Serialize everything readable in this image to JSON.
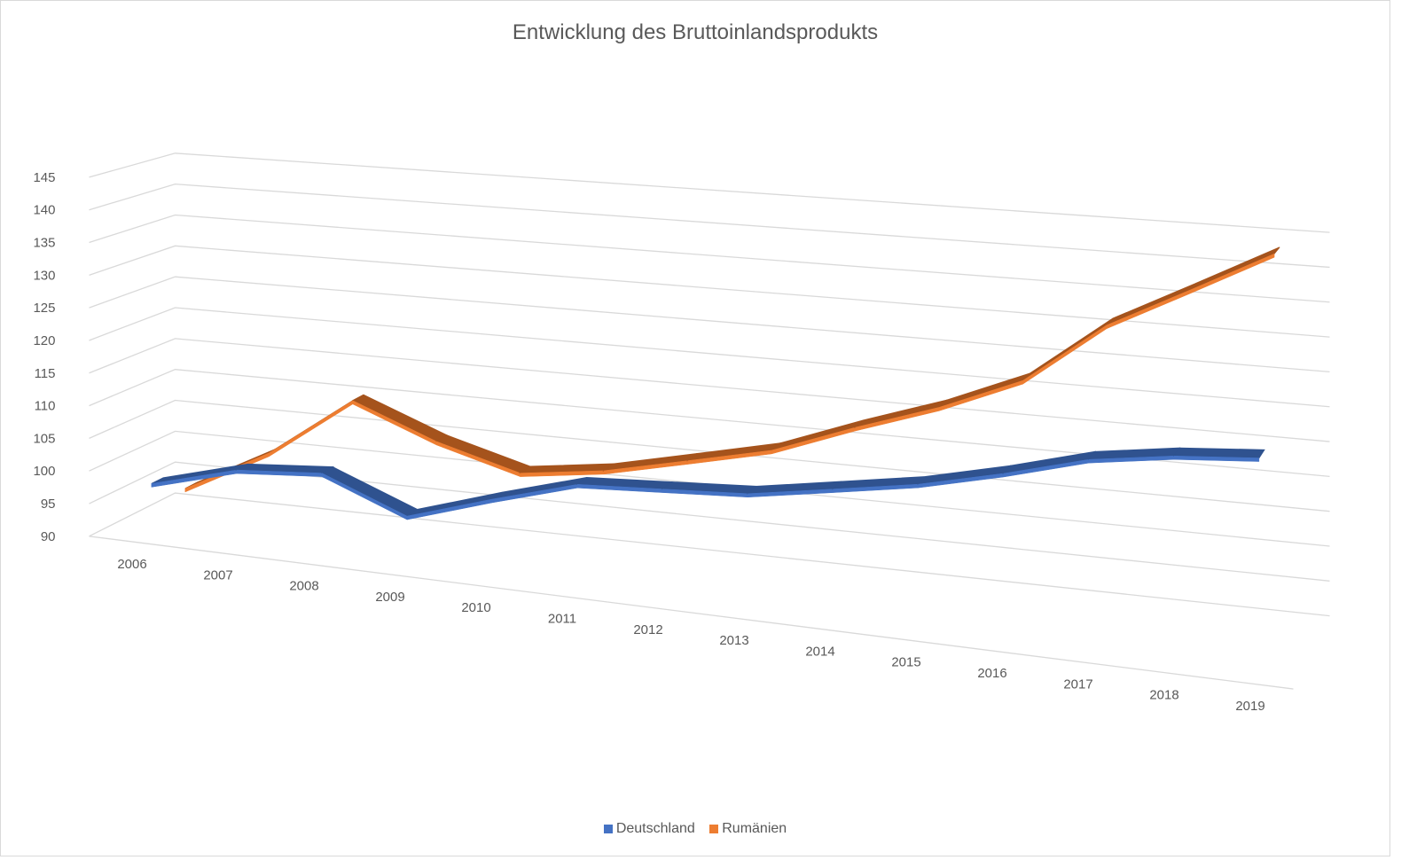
{
  "chart_data": {
    "type": "line",
    "subtype": "3d-line",
    "title": "Entwicklung des Bruttoinlandsprodukts",
    "categories": [
      "2006",
      "2007",
      "2008",
      "2009",
      "2010",
      "2011",
      "2012",
      "2013",
      "2014",
      "2015",
      "2016",
      "2017",
      "2018",
      "2019"
    ],
    "yticks": [
      "90",
      "95",
      "100",
      "105",
      "110",
      "115",
      "120",
      "125",
      "130",
      "135",
      "140",
      "145"
    ],
    "ylim": [
      90,
      145
    ],
    "grid": true,
    "legend_position": "bottom",
    "series": [
      {
        "name": "Deutschland",
        "color": "#4472C4",
        "values": [
          97.4,
          101,
          102,
          97,
          101,
          104.6,
          105.3,
          106,
          108,
          110,
          112.8,
          116,
          117.7,
          118.6
        ]
      },
      {
        "name": "Rumänien",
        "color": "#ED7D31",
        "values": [
          94,
          101,
          110.5,
          105.5,
          102,
          103.7,
          106.5,
          109.3,
          113.9,
          118,
          123,
          132,
          138,
          144
        ]
      }
    ]
  }
}
